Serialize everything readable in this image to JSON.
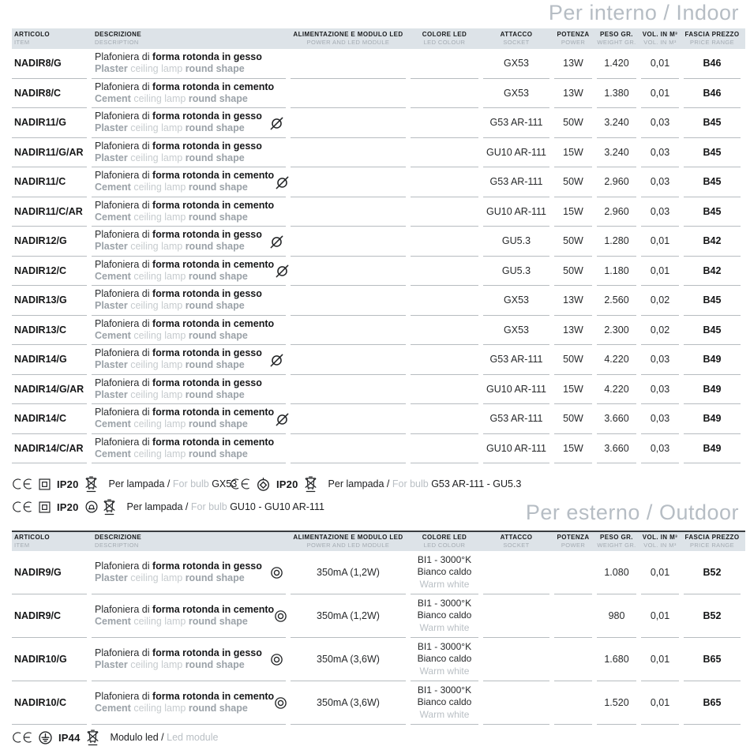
{
  "titles": {
    "indoor": "Per interno / Indoor",
    "outdoor": "Per esterno / Outdoor"
  },
  "header": {
    "cols": [
      {
        "it": "ARTICOLO",
        "en": "ITEM"
      },
      {
        "it": "DESCRIZIONE",
        "en": "DESCRIPTION"
      },
      {
        "it": "ALIMENTAZIONE E MODULO LED",
        "en": "POWER AND LED MODULE"
      },
      {
        "it": "COLORE LED",
        "en": "LED COLOUR"
      },
      {
        "it": "ATTACCO",
        "en": "SOCKET"
      },
      {
        "it": "POTENZA",
        "en": "POWER"
      },
      {
        "it": "PESO GR.",
        "en": "WEIGHT GR."
      },
      {
        "it": "VOL. IN M³",
        "en": "VOL. IN M³"
      },
      {
        "it": "FASCIA PREZZO",
        "en": "PRICE RANGE"
      }
    ]
  },
  "indoor": {
    "rows": [
      {
        "article": "NADIR8/G",
        "it_a": "Plafoniera di",
        "it_b": "forma rotonda in gesso",
        "en_a": "Plaster",
        "en_b": "ceiling lamp",
        "en_c": "round shape",
        "socket": "GX53",
        "watt": "13W",
        "weight": "1.420",
        "vol": "0,01",
        "price": "B46"
      },
      {
        "article": "NADIR8/C",
        "it_a": "Plafoniera di",
        "it_b": "forma rotonda in cemento",
        "en_a": "Cement",
        "en_b": "ceiling lamp",
        "en_c": "round shape",
        "socket": "GX53",
        "watt": "13W",
        "weight": "1.380",
        "vol": "0,01",
        "price": "B46"
      },
      {
        "article": "NADIR11/G",
        "it_a": "Plafoniera di",
        "it_b": "forma rotonda in gesso",
        "en_a": "Plaster",
        "en_b": "ceiling lamp",
        "en_c": "round shape",
        "socket": "G53 AR-111",
        "watt": "50W",
        "weight": "3.240",
        "vol": "0,03",
        "price": "B45"
      },
      {
        "article": "NADIR11/G/AR",
        "it_a": "Plafoniera di",
        "it_b": "forma rotonda in gesso",
        "en_a": "Plaster",
        "en_b": "ceiling lamp",
        "en_c": "round shape",
        "socket": "GU10 AR-111",
        "watt": "15W",
        "weight": "3.240",
        "vol": "0,03",
        "price": "B45"
      },
      {
        "article": "NADIR11/C",
        "it_a": "Plafoniera di",
        "it_b": "forma rotonda in cemento",
        "en_a": "Cement",
        "en_b": "ceiling lamp",
        "en_c": "round shape",
        "socket": "G53 AR-111",
        "watt": "50W",
        "weight": "2.960",
        "vol": "0,03",
        "price": "B45"
      },
      {
        "article": "NADIR11/C/AR",
        "it_a": "Plafoniera di",
        "it_b": "forma rotonda in cemento",
        "en_a": "Cement",
        "en_b": "ceiling lamp",
        "en_c": "round shape",
        "socket": "GU10 AR-111",
        "watt": "15W",
        "weight": "2.960",
        "vol": "0,03",
        "price": "B45"
      },
      {
        "article": "NADIR12/G",
        "it_a": "Plafoniera di",
        "it_b": "forma rotonda in gesso",
        "en_a": "Plaster",
        "en_b": "ceiling lamp",
        "en_c": "round shape",
        "socket": "GU5.3",
        "watt": "50W",
        "weight": "1.280",
        "vol": "0,01",
        "price": "B42"
      },
      {
        "article": "NADIR12/C",
        "it_a": "Plafoniera di",
        "it_b": "forma rotonda in cemento",
        "en_a": "Cement",
        "en_b": "ceiling lamp",
        "en_c": "round shape",
        "socket": "GU5.3",
        "watt": "50W",
        "weight": "1.180",
        "vol": "0,01",
        "price": "B42"
      },
      {
        "article": "NADIR13/G",
        "it_a": "Plafoniera di",
        "it_b": "forma rotonda in gesso",
        "en_a": "Plaster",
        "en_b": "ceiling lamp",
        "en_c": "round shape",
        "socket": "GX53",
        "watt": "13W",
        "weight": "2.560",
        "vol": "0,02",
        "price": "B45"
      },
      {
        "article": "NADIR13/C",
        "it_a": "Plafoniera di",
        "it_b": "forma rotonda in cemento",
        "en_a": "Cement",
        "en_b": "ceiling lamp",
        "en_c": "round shape",
        "socket": "GX53",
        "watt": "13W",
        "weight": "2.300",
        "vol": "0,02",
        "price": "B45"
      },
      {
        "article": "NADIR14/G",
        "it_a": "Plafoniera di",
        "it_b": "forma rotonda in gesso",
        "en_a": "Plaster",
        "en_b": "ceiling lamp",
        "en_c": "round shape",
        "socket": "G53 AR-111",
        "watt": "50W",
        "weight": "4.220",
        "vol": "0,03",
        "price": "B49"
      },
      {
        "article": "NADIR14/G/AR",
        "it_a": "Plafoniera di",
        "it_b": "forma rotonda in gesso",
        "en_a": "Plaster",
        "en_b": "ceiling lamp",
        "en_c": "round shape",
        "socket": "GU10 AR-111",
        "watt": "15W",
        "weight": "4.220",
        "vol": "0,03",
        "price": "B49"
      },
      {
        "article": "NADIR14/C",
        "it_a": "Plafoniera di",
        "it_b": "forma rotonda in cemento",
        "en_a": "Cement",
        "en_b": "ceiling lamp",
        "en_c": "round shape",
        "socket": "G53 AR-111",
        "watt": "50W",
        "weight": "3.660",
        "vol": "0,03",
        "price": "B49"
      },
      {
        "article": "NADIR14/C/AR",
        "it_a": "Plafoniera di",
        "it_b": "forma rotonda in cemento",
        "en_a": "Cement",
        "en_b": "ceiling lamp",
        "en_c": "round shape",
        "socket": "GU10 AR-111",
        "watt": "15W",
        "weight": "3.660",
        "vol": "0,03",
        "price": "B49"
      }
    ]
  },
  "outdoor": {
    "rows": [
      {
        "article": "NADIR9/G",
        "it_a": "Plafoniera di",
        "it_b": "forma rotonda in gesso",
        "en_a": "Plaster",
        "en_b": "ceiling lamp",
        "en_c": "round shape",
        "power": "350mA (1,2W)",
        "col_1": "BI1 - 3000°K",
        "col_2": "Bianco caldo",
        "col_3": "Warm white",
        "weight": "1.080",
        "vol": "0,01",
        "price": "B52"
      },
      {
        "article": "NADIR9/C",
        "it_a": "Plafoniera di",
        "it_b": "forma rotonda in cemento",
        "en_a": "Cement",
        "en_b": "ceiling lamp",
        "en_c": "round shape",
        "power": "350mA (1,2W)",
        "col_1": "BI1 - 3000°K",
        "col_2": "Bianco caldo",
        "col_3": "Warm white",
        "weight": "980",
        "vol": "0,01",
        "price": "B52"
      },
      {
        "article": "NADIR10/G",
        "it_a": "Plafoniera di",
        "it_b": "forma rotonda in gesso",
        "en_a": "Plaster",
        "en_b": "ceiling lamp",
        "en_c": "round shape",
        "power": "350mA (3,6W)",
        "col_1": "BI1 - 3000°K",
        "col_2": "Bianco caldo",
        "col_3": "Warm white",
        "weight": "1.680",
        "vol": "0,01",
        "price": "B65"
      },
      {
        "article": "NADIR10/C",
        "it_a": "Plafoniera di",
        "it_b": "forma rotonda in cemento",
        "en_a": "Cement",
        "en_b": "ceiling lamp",
        "en_c": "round shape",
        "power": "350mA (3,6W)",
        "col_1": "BI1 - 3000°K",
        "col_2": "Bianco caldo",
        "col_3": "Warm white",
        "weight": "1.520",
        "vol": "0,01",
        "price": "B65"
      }
    ]
  },
  "notes": {
    "a": {
      "ip": "IP20",
      "it": "Per lampada /",
      "en": "For bulb",
      "value": "GX53"
    },
    "b": {
      "ip": "IP20",
      "it": "Per lampada /",
      "en": "For bulb",
      "value": "G53 AR-111 - GU5.3"
    },
    "c": {
      "ip": "IP20",
      "it": "Per lampada /",
      "en": "For bulb",
      "value": "GU10 - GU10 AR-111"
    },
    "outdoor": {
      "ip": "IP44",
      "it": "Modulo led /",
      "en": "Led module",
      "value": ""
    }
  },
  "icons": {
    "ce": "CE conformity mark",
    "class2": "class II double insulation (square in square)",
    "weee": "crossed-out wheelie bin",
    "diamond": "circle with diamond lamp symbol",
    "shielded_lamp": "circle with self-shielded lamp symbol",
    "earth": "circle with earth/ground symbol",
    "no_bulb": "bulb not included (crossed-out circle)",
    "led_module": "LED module (concentric circles)"
  },
  "colors": {
    "header_band": "#dde3e8",
    "section_title": "#b6bdc4",
    "text_dark": "#17181a",
    "text_gray_strong": "#9ba2a8",
    "text_gray_light": "#c6cbce",
    "separator": "#b7bcc0"
  }
}
